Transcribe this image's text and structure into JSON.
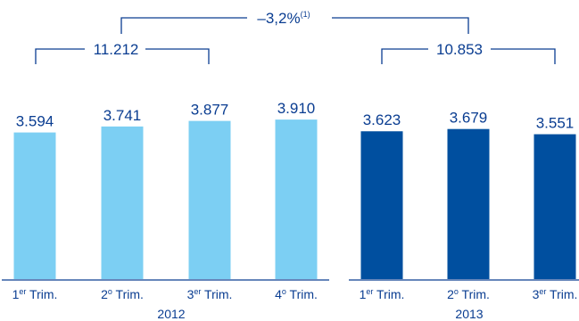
{
  "chart_data": {
    "type": "bar",
    "categories": [
      {
        "base": "1",
        "sup": "er",
        "text": " Trim."
      },
      {
        "base": "2",
        "sup": "o",
        "text": " Trim."
      },
      {
        "base": "3",
        "sup": "er",
        "text": " Trim."
      },
      {
        "base": "4",
        "sup": "o",
        "text": " Trim."
      },
      {
        "base": "1",
        "sup": "er",
        "text": " Trim."
      },
      {
        "base": "2",
        "sup": "o",
        "text": " Trim."
      },
      {
        "base": "3",
        "sup": "er",
        "text": " Trim."
      }
    ],
    "values": [
      3594,
      3741,
      3877,
      3910,
      3623,
      3679,
      3551
    ],
    "value_labels": [
      "3.594",
      "3.741",
      "3.877",
      "3.910",
      "3.623",
      "3.679",
      "3.551"
    ],
    "groups": [
      {
        "label": "2012",
        "start": 0,
        "end": 3,
        "color": "#7ccff3"
      },
      {
        "label": "2013",
        "start": 4,
        "end": 6,
        "color": "#004f9f"
      }
    ],
    "ylim": [
      0,
      4000
    ],
    "annotations": {
      "sum_2012": {
        "label": "11.212",
        "from": 0,
        "to": 2
      },
      "sum_2013": {
        "label": "10.853",
        "from": 4,
        "to": 6
      },
      "change": {
        "label": "–3,2%",
        "sup": "(1)"
      }
    },
    "colors": {
      "text": "#0a3d91",
      "axis": "#0a3d91",
      "bracket": "#0a3d91"
    }
  }
}
